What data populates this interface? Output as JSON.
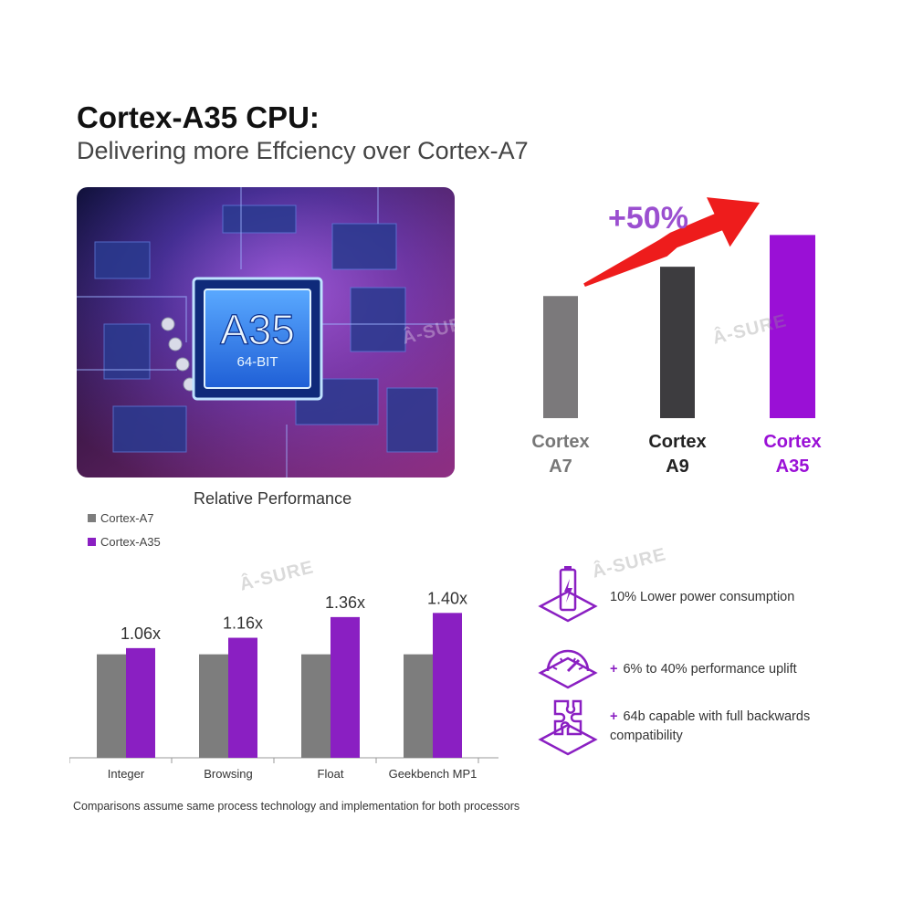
{
  "header": {
    "title": "Cortex-A35 CPU:",
    "subtitle": "Delivering more Effciency over Cortex-A7"
  },
  "chip_image": {
    "chip_label": "A35",
    "chip_sublabel": "64-BIT"
  },
  "watermark": "Â-SURE",
  "chart_data": [
    {
      "type": "bar",
      "categories": [
        "Cortex A7",
        "Cortex A9",
        "Cortex A35"
      ],
      "category_lines": [
        [
          "Cortex",
          "A7"
        ],
        [
          "Cortex",
          "A9"
        ],
        [
          "Cortex",
          "A35"
        ]
      ],
      "values": [
        1.0,
        1.24,
        1.5
      ],
      "bar_colors": [
        "#7b797b",
        "#3d3c3f",
        "#9a10d6"
      ],
      "label_colors": [
        "#777777",
        "#222222",
        "#9a10d6"
      ],
      "annotation": "+50%",
      "ylim": [
        0,
        1.6
      ]
    },
    {
      "type": "bar",
      "title": "Relative Performance",
      "categories": [
        "Integer",
        "Browsing",
        "Float",
        "Geekbench MP1"
      ],
      "series": [
        {
          "name": "Cortex-A7",
          "values": [
            1.0,
            1.0,
            1.0,
            1.0
          ],
          "color": "#7d7d7d"
        },
        {
          "name": "Cortex-A35",
          "values": [
            1.06,
            1.16,
            1.36,
            1.4
          ],
          "color": "#8a1fc2"
        }
      ],
      "data_labels": [
        "1.06x",
        "1.16x",
        "1.36x",
        "1.40x"
      ],
      "ylim": [
        0,
        1.5
      ],
      "legend": "top-left"
    }
  ],
  "features": [
    {
      "icon": "battery-icon",
      "prefix": "",
      "text": "10% Lower power consumption"
    },
    {
      "icon": "speedometer-icon",
      "prefix": "+",
      "text": "6% to 40% performance uplift"
    },
    {
      "icon": "puzzle-icon",
      "prefix": "+",
      "text": "64b capable with full backwards compatibility"
    }
  ],
  "footnote": "Comparisons assume same process technology and implementation for both processors",
  "colors": {
    "accent": "#8a1fc2",
    "arrow": "#ee1c1c",
    "annotation": "#9b4fd0"
  }
}
